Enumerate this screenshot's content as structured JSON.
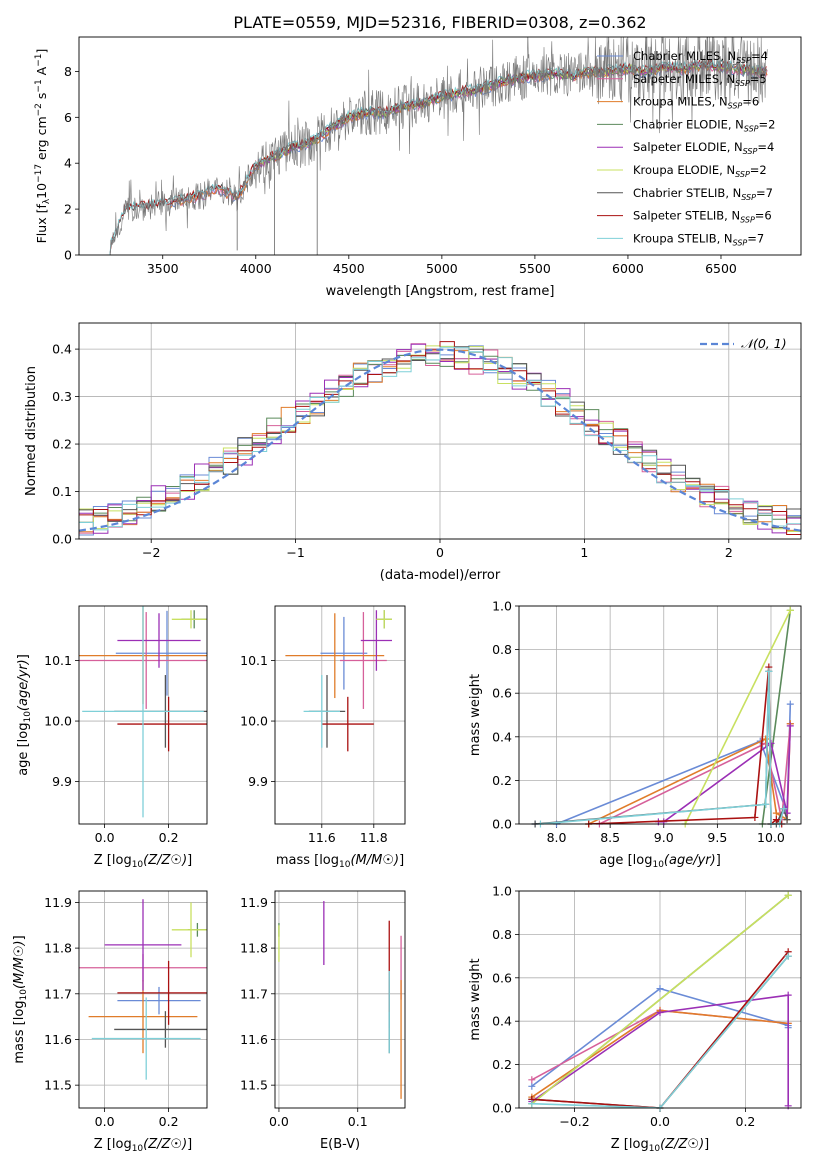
{
  "title": "PLATE=0559, MJD=52316, FIBERID=0308, z=0.362",
  "colors": {
    "chabrier_miles": "#6a8bd6",
    "salpeter_miles": "#d6609a",
    "kroupa_miles": "#e07c2a",
    "chabrier_elodie": "#5b8a5b",
    "salpeter_elodie": "#9b2fb5",
    "kroupa_elodie": "#c8e060",
    "chabrier_stelib": "#555555",
    "salpeter_stelib": "#aa1111",
    "kroupa_stelib": "#7fd0d8",
    "gaussian": "#5b86d6"
  },
  "legend_labels": [
    "Chabrier MILES, N_SSP=4",
    "Salpeter MILES, N_SSP=5",
    "Kroupa MILES, N_SSP=6",
    "Chabrier ELODIE, N_SSP=2",
    "Salpeter ELODIE, N_SSP=4",
    "Kroupa ELODIE, N_SSP=2",
    "Chabrier STELIB, N_SSP=7",
    "Salpeter STELIB, N_SSP=6",
    "Kroupa STELIB, N_SSP=7"
  ],
  "chart_data": [
    {
      "id": "spectrum",
      "type": "line",
      "xlabel": "wavelength [Angstrom, rest frame]",
      "ylabel": "Flux [f_λ 10^-17 erg cm^-2 s^-1 A^-1]",
      "xlim": [
        3050,
        6930
      ],
      "ylim": [
        0,
        9.5
      ],
      "xticks": [
        3500,
        4000,
        4500,
        5000,
        5500,
        6000,
        6500
      ],
      "yticks": [
        0,
        2,
        4,
        6,
        8
      ],
      "grid": false,
      "legend_position": "right",
      "continuum": {
        "x": [
          3200,
          3300,
          3400,
          3500,
          3600,
          3700,
          3800,
          3900,
          4000,
          4100,
          4200,
          4300,
          4400,
          4500,
          4600,
          4700,
          4800,
          4900,
          5000,
          5100,
          5200,
          5300,
          5400,
          5500,
          5600,
          5700,
          5800,
          5900,
          6000,
          6100,
          6200,
          6300,
          6400,
          6500,
          6600,
          6700,
          6750
        ],
        "y": [
          0,
          2.0,
          2.1,
          2.2,
          2.4,
          2.6,
          2.9,
          2.5,
          3.9,
          4.3,
          4.7,
          4.9,
          5.5,
          6.0,
          6.2,
          6.2,
          6.5,
          6.6,
          6.9,
          7.1,
          7.2,
          7.5,
          7.7,
          7.8,
          7.9,
          7.8,
          8.0,
          8.0,
          8.1,
          8.0,
          8.2,
          8.1,
          8.3,
          8.2,
          8.1,
          8.0,
          8.0
        ]
      },
      "noise_amplitude": 1.5
    },
    {
      "id": "residuals",
      "type": "histogram",
      "xlabel": "(data-model)/error",
      "ylabel": "Normed distribution",
      "xlim": [
        -2.5,
        2.5
      ],
      "ylim": [
        0,
        0.455
      ],
      "xticks": [
        -2,
        -1,
        0,
        1,
        2
      ],
      "yticks": [
        0.0,
        0.1,
        0.2,
        0.3,
        0.4
      ],
      "grid": true,
      "legend": "𝒩(0, 1)",
      "legend_position": "top-right",
      "bin_width": 0.1
    },
    {
      "id": "age_vs_Z",
      "type": "errorbar",
      "xlabel": "Z [log10(Z/Z☉)]",
      "ylabel": "age  [log10(age/yr)]",
      "xlim": [
        -0.08,
        0.32
      ],
      "ylim": [
        9.83,
        10.19
      ],
      "xticks": [
        0.0,
        0.2
      ],
      "yticks": [
        9.9,
        10.0,
        10.1
      ],
      "grid": true,
      "points": [
        {
          "c": "chabrier_miles",
          "x": 0.195,
          "xerr": 0.16,
          "y": 10.112,
          "yerr": 0.07
        },
        {
          "c": "salpeter_miles",
          "x": 0.13,
          "xerr": 0.23,
          "y": 10.1,
          "yerr": 0.08
        },
        {
          "c": "kroupa_miles",
          "x": 0.12,
          "xerr": 0.2,
          "y": 10.108,
          "yerr": 0.08
        },
        {
          "c": "chabrier_elodie",
          "x": 0.28,
          "xerr": 0.04,
          "y": 10.168,
          "yerr": 0.015
        },
        {
          "c": "salpeter_elodie",
          "x": 0.17,
          "xerr": 0.13,
          "y": 10.133,
          "yerr": 0.045
        },
        {
          "c": "kroupa_elodie",
          "x": 0.27,
          "xerr": 0.06,
          "y": 10.168,
          "yerr": 0.015
        },
        {
          "c": "chabrier_stelib",
          "x": 0.19,
          "xerr": 0.16,
          "y": 10.016,
          "yerr": 0.06
        },
        {
          "c": "salpeter_stelib",
          "x": 0.2,
          "xerr": 0.16,
          "y": 9.995,
          "yerr": 0.045
        },
        {
          "c": "kroupa_stelib",
          "x": 0.12,
          "xerr": 0.19,
          "y": 10.016,
          "yerr": 0.175
        }
      ]
    },
    {
      "id": "age_vs_mass",
      "type": "errorbar",
      "xlabel": "mass [log10(M/M☉)]",
      "ylabel": "",
      "xlim": [
        11.42,
        11.92
      ],
      "ylim": [
        9.83,
        10.19
      ],
      "xticks": [
        11.6,
        11.8
      ],
      "yticks": [
        9.9,
        10.0,
        10.1
      ],
      "grid": true,
      "points": [
        {
          "c": "chabrier_miles",
          "x": 11.685,
          "xerr": 0.09,
          "y": 10.112,
          "yerr": 0.06
        },
        {
          "c": "salpeter_miles",
          "x": 11.76,
          "xerr": 0.09,
          "y": 10.1,
          "yerr": 0.08
        },
        {
          "c": "kroupa_miles",
          "x": 11.65,
          "xerr": 0.19,
          "y": 10.108,
          "yerr": 0.07
        },
        {
          "c": "chabrier_elodie",
          "x": 11.84,
          "xerr": 0.03,
          "y": 10.168,
          "yerr": 0.015
        },
        {
          "c": "salpeter_elodie",
          "x": 11.81,
          "xerr": 0.06,
          "y": 10.133,
          "yerr": 0.05
        },
        {
          "c": "kroupa_elodie",
          "x": 11.84,
          "xerr": 0.03,
          "y": 10.168,
          "yerr": 0.015
        },
        {
          "c": "chabrier_stelib",
          "x": 11.62,
          "xerr": 0.07,
          "y": 10.016,
          "yerr": 0.06
        },
        {
          "c": "salpeter_stelib",
          "x": 11.7,
          "xerr": 0.1,
          "y": 9.995,
          "yerr": 0.045
        },
        {
          "c": "kroupa_stelib",
          "x": 11.6,
          "xerr": 0.07,
          "y": 10.016,
          "yerr": 0.06
        }
      ]
    },
    {
      "id": "mass_weight_vs_age",
      "type": "line",
      "xlabel": "age  [log10(age/yr)]",
      "ylabel": "mass weight",
      "xlim": [
        7.65,
        10.28
      ],
      "ylim": [
        0,
        1
      ],
      "xticks": [
        8.0,
        8.5,
        9.0,
        9.5,
        10.0
      ],
      "yticks": [
        0.0,
        0.2,
        0.4,
        0.6,
        0.8,
        1.0
      ],
      "grid": true,
      "series": [
        {
          "c": "chabrier_miles",
          "x": [
            7.8,
            8.0,
            9.9,
            10.15,
            10.18
          ],
          "y": [
            0.0,
            0.0,
            0.38,
            0.05,
            0.55
          ]
        },
        {
          "c": "salpeter_miles",
          "x": [
            8.4,
            9.95,
            10.1,
            10.18
          ],
          "y": [
            0.0,
            0.37,
            0.02,
            0.46
          ]
        },
        {
          "c": "kroupa_miles",
          "x": [
            8.3,
            9.95,
            10.05,
            10.15,
            10.18
          ],
          "y": [
            0.0,
            0.39,
            0.05,
            0.02,
            0.46
          ]
        },
        {
          "c": "chabrier_elodie",
          "x": [
            9.92,
            10.18
          ],
          "y": [
            0.0,
            0.98
          ]
        },
        {
          "c": "salpeter_elodie",
          "x": [
            8.95,
            9.0,
            10.0,
            10.15,
            10.18
          ],
          "y": [
            0.01,
            0.01,
            0.37,
            0.05,
            0.45
          ]
        },
        {
          "c": "kroupa_elodie",
          "x": [
            9.2,
            10.18
          ],
          "y": [
            0.0,
            0.98
          ]
        },
        {
          "c": "chabrier_stelib",
          "x": [
            7.8,
            9.95,
            9.98,
            10.0,
            10.05,
            10.12,
            10.15
          ],
          "y": [
            0.0,
            0.09,
            0.7,
            0.0,
            0.0,
            0.07,
            0.02
          ]
        },
        {
          "c": "salpeter_stelib",
          "x": [
            8.3,
            9.85,
            9.98,
            10.0,
            10.05,
            10.1
          ],
          "y": [
            0.0,
            0.03,
            0.72,
            0.0,
            0.02,
            0.0
          ]
        },
        {
          "c": "kroupa_stelib",
          "x": [
            7.85,
            9.95,
            9.98,
            10.0,
            10.08,
            10.12
          ],
          "y": [
            0.0,
            0.09,
            0.7,
            0.0,
            0.0,
            0.07
          ]
        }
      ]
    },
    {
      "id": "mass_vs_Z",
      "type": "errorbar",
      "xlabel": "Z [log10(Z/Z☉)]",
      "ylabel": "mass [log10(M/M☉)]",
      "xlim": [
        -0.08,
        0.32
      ],
      "ylim": [
        11.45,
        11.925
      ],
      "xticks": [
        0.0,
        0.2
      ],
      "yticks": [
        11.5,
        11.6,
        11.7,
        11.8,
        11.9
      ],
      "grid": true,
      "points": [
        {
          "c": "chabrier_miles",
          "x": 0.17,
          "xerr": 0.13,
          "y": 11.685,
          "yerr": 0.03
        },
        {
          "c": "salpeter_miles",
          "x": 0.12,
          "xerr": 0.21,
          "y": 11.757,
          "yerr": 0.03
        },
        {
          "c": "kroupa_miles",
          "x": 0.12,
          "xerr": 0.17,
          "y": 11.65,
          "yerr": 0.08
        },
        {
          "c": "chabrier_elodie",
          "x": 0.29,
          "xerr": 0.03,
          "y": 11.84,
          "yerr": 0.015
        },
        {
          "c": "salpeter_elodie",
          "x": 0.12,
          "xerr": 0.12,
          "y": 11.807,
          "yerr": 0.1
        },
        {
          "c": "kroupa_elodie",
          "x": 0.27,
          "xerr": 0.06,
          "y": 11.84,
          "yerr": 0.06
        },
        {
          "c": "chabrier_stelib",
          "x": 0.19,
          "xerr": 0.16,
          "y": 11.622,
          "yerr": 0.04
        },
        {
          "c": "salpeter_stelib",
          "x": 0.2,
          "xerr": 0.16,
          "y": 11.702,
          "yerr": 0.07
        },
        {
          "c": "kroupa_stelib",
          "x": 0.13,
          "xerr": 0.17,
          "y": 11.602,
          "yerr": 0.09
        }
      ]
    },
    {
      "id": "mass_vs_EBV",
      "type": "errorbar",
      "xlabel": "E(B-V)",
      "ylabel": "",
      "xlim": [
        -0.005,
        0.16
      ],
      "ylim": [
        11.45,
        11.925
      ],
      "xticks": [
        0.0,
        0.1
      ],
      "yticks": [
        11.5,
        11.6,
        11.7,
        11.8,
        11.9
      ],
      "grid": true,
      "points": [
        {
          "c": "chabrier_miles",
          "x": 0.14,
          "xerr": 0,
          "y": 11.685,
          "yerr": 0.06
        },
        {
          "c": "salpeter_miles",
          "x": 0.155,
          "xerr": 0,
          "y": 11.757,
          "yerr": 0.07
        },
        {
          "c": "kroupa_miles",
          "x": 0.155,
          "xerr": 0,
          "y": 11.6,
          "yerr": 0.13
        },
        {
          "c": "chabrier_elodie",
          "x": 0.0,
          "xerr": 0,
          "y": 11.84,
          "yerr": 0.015
        },
        {
          "c": "salpeter_elodie",
          "x": 0.057,
          "xerr": 0,
          "y": 11.833,
          "yerr": 0.07
        },
        {
          "c": "kroupa_elodie",
          "x": 0.0,
          "xerr": 0,
          "y": 11.81,
          "yerr": 0.04
        },
        {
          "c": "chabrier_stelib",
          "x": 0.14,
          "xerr": 0,
          "y": 11.65,
          "yerr": 0.08
        },
        {
          "c": "salpeter_stelib",
          "x": 0.14,
          "xerr": 0,
          "y": 11.76,
          "yerr": 0.1
        },
        {
          "c": "kroupa_stelib",
          "x": 0.14,
          "xerr": 0,
          "y": 11.66,
          "yerr": 0.09
        }
      ]
    },
    {
      "id": "mass_weight_vs_Z",
      "type": "line",
      "xlabel": "Z [log10(Z/Z☉)]",
      "ylabel": "mass weight",
      "xlim": [
        -0.33,
        0.33
      ],
      "ylim": [
        0,
        1
      ],
      "xticks": [
        -0.2,
        0.0,
        0.2
      ],
      "yticks": [
        0.0,
        0.2,
        0.4,
        0.6,
        0.8,
        1.0
      ],
      "grid": true,
      "series": [
        {
          "c": "chabrier_miles",
          "x": [
            -0.3,
            0.0,
            0.3,
            0.3
          ],
          "y": [
            0.1,
            0.55,
            0.38,
            0.37
          ]
        },
        {
          "c": "salpeter_miles",
          "x": [
            -0.3,
            0.0,
            0.3
          ],
          "y": [
            0.13,
            0.45,
            0.39
          ]
        },
        {
          "c": "kroupa_miles",
          "x": [
            -0.3,
            0.0,
            0.3
          ],
          "y": [
            0.05,
            0.45,
            0.39
          ]
        },
        {
          "c": "chabrier_elodie",
          "x": [
            -0.3,
            0.3
          ],
          "y": [
            0.02,
            0.98
          ]
        },
        {
          "c": "salpeter_elodie",
          "x": [
            -0.3,
            0.0,
            0.3,
            0.3
          ],
          "y": [
            0.03,
            0.44,
            0.52,
            0.01
          ]
        },
        {
          "c": "kroupa_elodie",
          "x": [
            -0.3,
            0.3
          ],
          "y": [
            0.02,
            0.98
          ]
        },
        {
          "c": "chabrier_stelib",
          "x": [
            -0.3,
            0.0,
            0.3
          ],
          "y": [
            0.04,
            0.0,
            0.7
          ]
        },
        {
          "c": "salpeter_stelib",
          "x": [
            -0.3,
            0.0,
            0.3
          ],
          "y": [
            0.04,
            0.0,
            0.72
          ]
        },
        {
          "c": "kroupa_stelib",
          "x": [
            -0.3,
            0.0,
            0.3
          ],
          "y": [
            0.02,
            0.0,
            0.7
          ]
        }
      ]
    }
  ]
}
